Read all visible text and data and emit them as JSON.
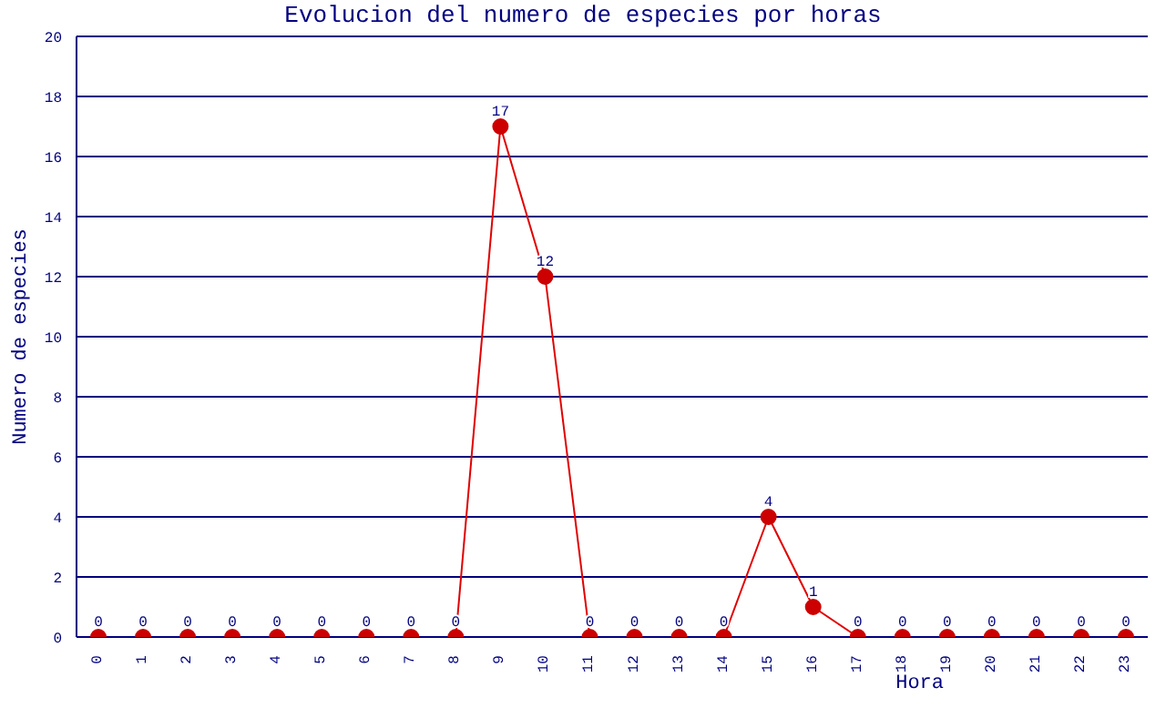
{
  "chart_data": {
    "type": "line",
    "title": "Evolucion del numero de especies por horas",
    "xlabel": "Hora",
    "ylabel": "Numero de especies",
    "categories": [
      "0",
      "1",
      "2",
      "3",
      "4",
      "5",
      "6",
      "7",
      "8",
      "9",
      "10",
      "11",
      "12",
      "13",
      "14",
      "15",
      "16",
      "17",
      "18",
      "19",
      "20",
      "21",
      "22",
      "23"
    ],
    "series": [
      {
        "color": "#e00000",
        "values": [
          0,
          0,
          0,
          0,
          0,
          0,
          0,
          0,
          0,
          17,
          12,
          0,
          0,
          0,
          0,
          4,
          1,
          0,
          0,
          0,
          0,
          0,
          0,
          0
        ]
      }
    ],
    "ylim": [
      0,
      20
    ],
    "yticks": [
      0,
      2,
      4,
      6,
      8,
      10,
      12,
      14,
      16,
      18,
      20
    ],
    "grid": "y",
    "marker": "circle",
    "data_labels": true,
    "legend": false
  }
}
